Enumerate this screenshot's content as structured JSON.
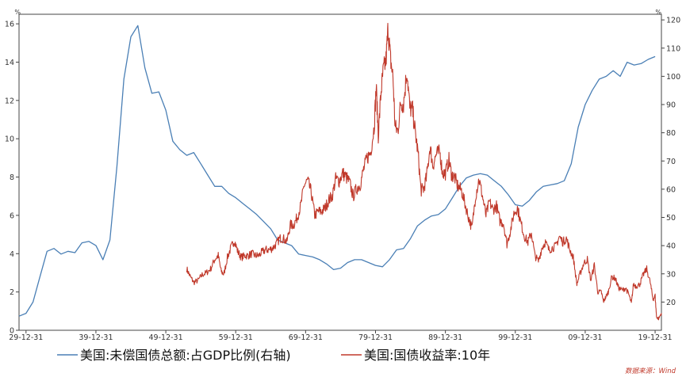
{
  "chart_data": {
    "type": "line",
    "xlabel": "",
    "x_ticks": [
      "29-12-31",
      "39-12-31",
      "49-12-31",
      "59-12-31",
      "69-12-31",
      "79-12-31",
      "89-12-31",
      "99-12-31",
      "09-12-31",
      "19-12-31"
    ],
    "x_range": [
      1929.0,
      2020.9
    ],
    "y_left": {
      "unit": "%",
      "range": [
        0,
        16.5
      ],
      "ticks": [
        0,
        2,
        4,
        6,
        8,
        10,
        12,
        14,
        16
      ]
    },
    "y_right": {
      "unit": "%",
      "range": [
        10,
        122
      ],
      "ticks": [
        20,
        30,
        40,
        50,
        60,
        70,
        80,
        90,
        100,
        110,
        120
      ]
    },
    "series": [
      {
        "name": "美国:未偿国债总额:占GDP比例(右轴)",
        "axis": "right",
        "color": "#4a7fb5",
        "points": [
          [
            1929,
            15
          ],
          [
            1930,
            16
          ],
          [
            1931,
            20
          ],
          [
            1932,
            29
          ],
          [
            1933,
            38
          ],
          [
            1934,
            39
          ],
          [
            1935,
            37
          ],
          [
            1936,
            38
          ],
          [
            1937,
            37.5
          ],
          [
            1938,
            41
          ],
          [
            1939,
            41.5
          ],
          [
            1940,
            40
          ],
          [
            1941,
            35
          ],
          [
            1942,
            42
          ],
          [
            1943,
            68
          ],
          [
            1944,
            99
          ],
          [
            1945,
            114
          ],
          [
            1946,
            118
          ],
          [
            1947,
            103
          ],
          [
            1948,
            94
          ],
          [
            1949,
            94.5
          ],
          [
            1950,
            88
          ],
          [
            1951,
            77
          ],
          [
            1952,
            74
          ],
          [
            1953,
            72
          ],
          [
            1954,
            73
          ],
          [
            1955,
            69
          ],
          [
            1956,
            65
          ],
          [
            1957,
            61
          ],
          [
            1958,
            61
          ],
          [
            1959,
            58.5
          ],
          [
            1960,
            57
          ],
          [
            1961,
            55
          ],
          [
            1962,
            53
          ],
          [
            1963,
            51
          ],
          [
            1964,
            48.5
          ],
          [
            1965,
            46
          ],
          [
            1966,
            42
          ],
          [
            1967,
            41
          ],
          [
            1968,
            40
          ],
          [
            1969,
            37
          ],
          [
            1970,
            36.5
          ],
          [
            1971,
            36
          ],
          [
            1972,
            35
          ],
          [
            1973,
            33.5
          ],
          [
            1974,
            31.5
          ],
          [
            1975,
            32
          ],
          [
            1976,
            34
          ],
          [
            1977,
            35
          ],
          [
            1978,
            35
          ],
          [
            1979,
            34
          ],
          [
            1980,
            33
          ],
          [
            1981,
            32.5
          ],
          [
            1982,
            35
          ],
          [
            1983,
            38.5
          ],
          [
            1984,
            39
          ],
          [
            1985,
            42.5
          ],
          [
            1986,
            47
          ],
          [
            1987,
            49
          ],
          [
            1988,
            50.5
          ],
          [
            1989,
            51
          ],
          [
            1990,
            53
          ],
          [
            1991,
            57
          ],
          [
            1992,
            61
          ],
          [
            1993,
            64
          ],
          [
            1994,
            65
          ],
          [
            1995,
            65.5
          ],
          [
            1996,
            65
          ],
          [
            1997,
            63
          ],
          [
            1998,
            61
          ],
          [
            1999,
            58
          ],
          [
            2000,
            54.5
          ],
          [
            2001,
            54
          ],
          [
            2002,
            56
          ],
          [
            2003,
            59
          ],
          [
            2004,
            61
          ],
          [
            2005,
            61.5
          ],
          [
            2006,
            62
          ],
          [
            2007,
            63
          ],
          [
            2008,
            69
          ],
          [
            2009,
            82
          ],
          [
            2010,
            90
          ],
          [
            2011,
            95
          ],
          [
            2012,
            99
          ],
          [
            2013,
            100
          ],
          [
            2014,
            102
          ],
          [
            2015,
            100
          ],
          [
            2016,
            105
          ],
          [
            2017,
            104
          ],
          [
            2018,
            104.5
          ],
          [
            2019,
            106
          ],
          [
            2020,
            107
          ]
        ]
      },
      {
        "name": "美国:国债收益率:10年",
        "axis": "left",
        "color": "#c0392b",
        "points": [
          [
            1953.0,
            3.2
          ],
          [
            1953.5,
            2.8
          ],
          [
            1954.0,
            2.5
          ],
          [
            1954.6,
            2.6
          ],
          [
            1955.2,
            2.9
          ],
          [
            1955.8,
            3.0
          ],
          [
            1956.4,
            3.2
          ],
          [
            1957.0,
            3.7
          ],
          [
            1957.5,
            3.9
          ],
          [
            1957.9,
            3.1
          ],
          [
            1958.3,
            2.9
          ],
          [
            1958.8,
            3.8
          ],
          [
            1959.3,
            4.3
          ],
          [
            1959.8,
            4.7
          ],
          [
            1960.3,
            4.1
          ],
          [
            1960.8,
            3.8
          ],
          [
            1961.3,
            3.9
          ],
          [
            1961.8,
            3.9
          ],
          [
            1962.3,
            4.0
          ],
          [
            1962.8,
            3.9
          ],
          [
            1963.3,
            3.9
          ],
          [
            1963.8,
            4.1
          ],
          [
            1964.3,
            4.2
          ],
          [
            1964.8,
            4.2
          ],
          [
            1965.3,
            4.3
          ],
          [
            1965.8,
            4.5
          ],
          [
            1966.3,
            4.8
          ],
          [
            1966.8,
            4.8
          ],
          [
            1967.3,
            4.6
          ],
          [
            1967.8,
            5.5
          ],
          [
            1968.3,
            5.5
          ],
          [
            1968.8,
            5.9
          ],
          [
            1969.3,
            6.5
          ],
          [
            1969.8,
            7.6
          ],
          [
            1970.3,
            7.8
          ],
          [
            1970.8,
            7.2
          ],
          [
            1971.3,
            6.0
          ],
          [
            1971.8,
            6.2
          ],
          [
            1972.3,
            6.2
          ],
          [
            1972.8,
            6.4
          ],
          [
            1973.3,
            6.8
          ],
          [
            1973.8,
            7.0
          ],
          [
            1974.3,
            7.9
          ],
          [
            1974.8,
            7.8
          ],
          [
            1975.3,
            8.2
          ],
          [
            1975.8,
            8.0
          ],
          [
            1976.3,
            7.7
          ],
          [
            1976.8,
            7.0
          ],
          [
            1977.3,
            7.4
          ],
          [
            1977.8,
            7.6
          ],
          [
            1978.3,
            8.4
          ],
          [
            1978.8,
            9.0
          ],
          [
            1979.3,
            9.3
          ],
          [
            1979.8,
            10.6
          ],
          [
            1980.1,
            12.7
          ],
          [
            1980.4,
            10.2
          ],
          [
            1980.8,
            12.5
          ],
          [
            1981.1,
            13.5
          ],
          [
            1981.5,
            14.1
          ],
          [
            1981.8,
            15.8
          ],
          [
            1982.1,
            14.3
          ],
          [
            1982.5,
            13.2
          ],
          [
            1982.8,
            10.6
          ],
          [
            1983.2,
            10.4
          ],
          [
            1983.6,
            11.9
          ],
          [
            1984.0,
            11.8
          ],
          [
            1984.5,
            13.6
          ],
          [
            1984.9,
            11.6
          ],
          [
            1985.3,
            11.5
          ],
          [
            1985.7,
            10.3
          ],
          [
            1986.1,
            9.2
          ],
          [
            1986.5,
            7.3
          ],
          [
            1986.9,
            7.4
          ],
          [
            1987.3,
            8.0
          ],
          [
            1987.8,
            9.6
          ],
          [
            1988.2,
            8.6
          ],
          [
            1988.7,
            9.2
          ],
          [
            1989.2,
            9.3
          ],
          [
            1989.6,
            8.2
          ],
          [
            1990.0,
            8.2
          ],
          [
            1990.5,
            8.9
          ],
          [
            1990.9,
            8.1
          ],
          [
            1991.3,
            8.0
          ],
          [
            1991.8,
            7.5
          ],
          [
            1992.3,
            7.3
          ],
          [
            1992.8,
            6.6
          ],
          [
            1993.3,
            5.9
          ],
          [
            1993.8,
            5.3
          ],
          [
            1994.3,
            7.0
          ],
          [
            1994.8,
            7.9
          ],
          [
            1995.3,
            7.0
          ],
          [
            1995.8,
            6.0
          ],
          [
            1996.3,
            6.7
          ],
          [
            1996.8,
            6.3
          ],
          [
            1997.3,
            6.5
          ],
          [
            1997.8,
            5.7
          ],
          [
            1998.3,
            5.6
          ],
          [
            1998.8,
            4.5
          ],
          [
            1999.3,
            5.2
          ],
          [
            1999.8,
            6.1
          ],
          [
            2000.3,
            6.4
          ],
          [
            2000.8,
            5.6
          ],
          [
            2001.3,
            4.9
          ],
          [
            2001.8,
            4.6
          ],
          [
            2002.3,
            5.1
          ],
          [
            2002.8,
            3.9
          ],
          [
            2003.3,
            3.6
          ],
          [
            2003.8,
            4.3
          ],
          [
            2004.3,
            4.6
          ],
          [
            2004.8,
            4.2
          ],
          [
            2005.3,
            4.3
          ],
          [
            2005.8,
            4.4
          ],
          [
            2006.3,
            4.9
          ],
          [
            2006.8,
            4.6
          ],
          [
            2007.3,
            4.8
          ],
          [
            2007.8,
            4.2
          ],
          [
            2008.3,
            3.8
          ],
          [
            2008.8,
            2.4
          ],
          [
            2009.3,
            3.0
          ],
          [
            2009.8,
            3.5
          ],
          [
            2010.3,
            3.7
          ],
          [
            2010.8,
            2.6
          ],
          [
            2011.3,
            3.4
          ],
          [
            2011.8,
            2.0
          ],
          [
            2012.3,
            2.0
          ],
          [
            2012.6,
            1.5
          ],
          [
            2012.9,
            1.7
          ],
          [
            2013.3,
            2.0
          ],
          [
            2013.8,
            2.8
          ],
          [
            2014.3,
            2.7
          ],
          [
            2014.8,
            2.2
          ],
          [
            2015.3,
            2.1
          ],
          [
            2015.8,
            2.2
          ],
          [
            2016.3,
            1.8
          ],
          [
            2016.6,
            1.4
          ],
          [
            2016.9,
            2.4
          ],
          [
            2017.3,
            2.3
          ],
          [
            2017.8,
            2.4
          ],
          [
            2018.3,
            2.9
          ],
          [
            2018.8,
            3.2
          ],
          [
            2019.3,
            2.5
          ],
          [
            2019.7,
            1.6
          ],
          [
            2020.0,
            1.8
          ],
          [
            2020.2,
            0.7
          ],
          [
            2020.5,
            0.6
          ],
          [
            2020.9,
            0.9
          ]
        ]
      }
    ]
  },
  "legend": {
    "items": [
      {
        "label": "美国:未偿国债总额:占GDP比例(右轴)",
        "color": "#4a7fb5"
      },
      {
        "label": "美国:国债收益率:10年",
        "color": "#c0392b"
      }
    ]
  },
  "source_note": "数据来源：Wind"
}
